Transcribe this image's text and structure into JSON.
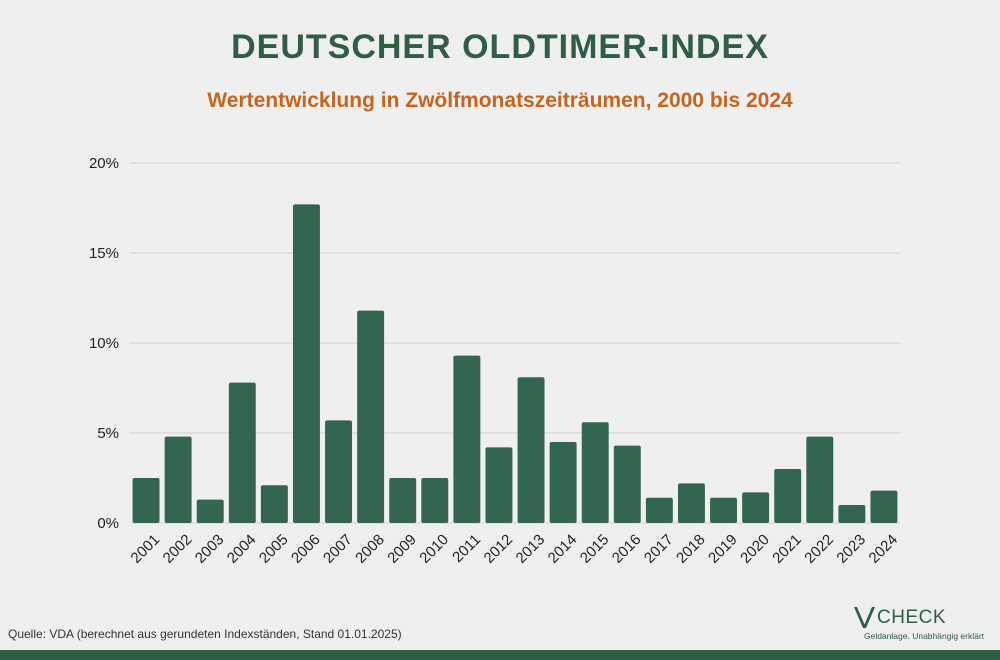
{
  "title": "DEUTSCHER OLDTIMER-INDEX",
  "subtitle": "Wertentwicklung in Zwölfmonatszeiträumen, 2000 bis 2024",
  "source_note": "Quelle: VDA (berechnet aus gerundeten Indexständen, Stand 01.01.2025)",
  "logo": {
    "text": "CHECK",
    "tagline": "Geldanlage. Unabhängig erklärt"
  },
  "colors": {
    "bar": "#336650",
    "title": "#2f5e46",
    "subtitle": "#c8641e",
    "grid": "#cfcfcf",
    "background": "#efefef"
  },
  "chart_data": {
    "type": "bar",
    "title": "DEUTSCHER OLDTIMER-INDEX",
    "subtitle": "Wertentwicklung in Zwölfmonatszeiträumen, 2000 bis 2024",
    "xlabel": "",
    "ylabel": "",
    "ylim": [
      0,
      20
    ],
    "yticks": [
      0,
      5,
      10,
      15,
      20
    ],
    "ytick_labels": [
      "0%",
      "5%",
      "10%",
      "15%",
      "20%"
    ],
    "grid": true,
    "legend": "none",
    "categories": [
      "2001",
      "2002",
      "2003",
      "2004",
      "2005",
      "2006",
      "2007",
      "2008",
      "2009",
      "2010",
      "2011",
      "2012",
      "2013",
      "2014",
      "2015",
      "2016",
      "2017",
      "2018",
      "2019",
      "2020",
      "2021",
      "2022",
      "2023",
      "2024"
    ],
    "values": [
      2.5,
      4.8,
      1.3,
      7.8,
      2.1,
      17.7,
      5.7,
      11.8,
      2.5,
      2.5,
      9.3,
      4.2,
      8.1,
      4.5,
      5.6,
      4.3,
      1.4,
      2.2,
      1.4,
      1.7,
      3.0,
      4.8,
      1.0,
      1.8
    ]
  }
}
